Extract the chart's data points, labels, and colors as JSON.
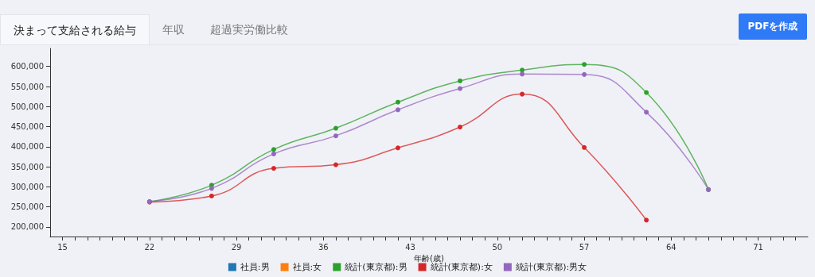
{
  "chart_data": {
    "type": "line",
    "xlabel": "年齢(歳)",
    "annotations": [
      "決まって支給される給与",
      "年収",
      "超過実労働比較",
      "PDFを作成"
    ],
    "xlim": [
      14,
      75
    ],
    "xticks": [
      {
        "value": 15,
        "label": "15"
      },
      {
        "value": 16,
        "label": null
      },
      {
        "value": 17,
        "label": null
      },
      {
        "value": 18,
        "label": null
      },
      {
        "value": 19,
        "label": null
      },
      {
        "value": 20,
        "label": null
      },
      {
        "value": 21,
        "label": null
      },
      {
        "value": 22,
        "label": "22"
      },
      {
        "value": 23,
        "label": null
      },
      {
        "value": 24,
        "label": null
      },
      {
        "value": 25,
        "label": null
      },
      {
        "value": 26,
        "label": null
      },
      {
        "value": 27,
        "label": null
      },
      {
        "value": 28,
        "label": null
      },
      {
        "value": 29,
        "label": "29"
      },
      {
        "value": 30,
        "label": null
      },
      {
        "value": 31,
        "label": null
      },
      {
        "value": 32,
        "label": null
      },
      {
        "value": 33,
        "label": null
      },
      {
        "value": 34,
        "label": null
      },
      {
        "value": 35,
        "label": null
      },
      {
        "value": 36,
        "label": "36"
      },
      {
        "value": 37,
        "label": null
      },
      {
        "value": 38,
        "label": null
      },
      {
        "value": 39,
        "label": null
      },
      {
        "value": 40,
        "label": null
      },
      {
        "value": 41,
        "label": null
      },
      {
        "value": 42,
        "label": null
      },
      {
        "value": 43,
        "label": "43"
      },
      {
        "value": 44,
        "label": null
      },
      {
        "value": 45,
        "label": null
      },
      {
        "value": 46,
        "label": null
      },
      {
        "value": 47,
        "label": null
      },
      {
        "value": 48,
        "label": null
      },
      {
        "value": 49,
        "label": null
      },
      {
        "value": 50,
        "label": "50"
      },
      {
        "value": 51,
        "label": null
      },
      {
        "value": 52,
        "label": null
      },
      {
        "value": 53,
        "label": null
      },
      {
        "value": 54,
        "label": null
      },
      {
        "value": 55,
        "label": null
      },
      {
        "value": 56,
        "label": null
      },
      {
        "value": 57,
        "label": "57"
      },
      {
        "value": 58,
        "label": null
      },
      {
        "value": 59,
        "label": null
      },
      {
        "value": 60,
        "label": null
      },
      {
        "value": 61,
        "label": null
      },
      {
        "value": 62,
        "label": null
      },
      {
        "value": 63,
        "label": null
      },
      {
        "value": 64,
        "label": "64"
      },
      {
        "value": 65,
        "label": null
      },
      {
        "value": 66,
        "label": null
      },
      {
        "value": 67,
        "label": null
      },
      {
        "value": 68,
        "label": null
      },
      {
        "value": 69,
        "label": null
      },
      {
        "value": 70,
        "label": null
      },
      {
        "value": 71,
        "label": "71"
      },
      {
        "value": 72,
        "label": null
      },
      {
        "value": 73,
        "label": null
      },
      {
        "value": 74,
        "label": null
      }
    ],
    "ylim": [
      176000,
      645000
    ],
    "yticks": [
      {
        "value": 200000,
        "label": "200,000"
      },
      {
        "value": 250000,
        "label": "250,000"
      },
      {
        "value": 300000,
        "label": "300,000"
      },
      {
        "value": 350000,
        "label": "350,000"
      },
      {
        "value": 400000,
        "label": "400,000"
      },
      {
        "value": 450000,
        "label": "450,000"
      },
      {
        "value": 500000,
        "label": "500,000"
      },
      {
        "value": 550000,
        "label": "550,000"
      },
      {
        "value": 600000,
        "label": "600,000"
      }
    ],
    "grid": false,
    "legend": "bottom",
    "marker": "circle",
    "line_style": "solid",
    "series": [
      {
        "name": "社員:男",
        "color": "#1f77b4"
      },
      {
        "name": "社員:女",
        "color": "#ff7f0e"
      },
      {
        "name": "統計(東京都):男",
        "color": "#2ca02c",
        "x": [
          22,
          27,
          32,
          37,
          42,
          47,
          52,
          57,
          62,
          67
        ],
        "values": [
          263000,
          304000,
          393000,
          446000,
          511000,
          564000,
          591000,
          605000,
          535000,
          293000
        ]
      },
      {
        "name": "統計(東京都):女",
        "color": "#d62728",
        "x": [
          22,
          27,
          32,
          37,
          42,
          47,
          52,
          57,
          62
        ],
        "values": [
          262000,
          277000,
          346000,
          355000,
          397000,
          449000,
          531000,
          398000,
          217000
        ]
      },
      {
        "name": "統計(東京都):男女",
        "color": "#9467bd",
        "x": [
          22,
          27,
          32,
          37,
          42,
          47,
          52,
          57,
          62,
          67
        ],
        "values": [
          263000,
          296000,
          382000,
          427000,
          492000,
          545000,
          581000,
          580000,
          486000,
          293000
        ]
      }
    ]
  }
}
